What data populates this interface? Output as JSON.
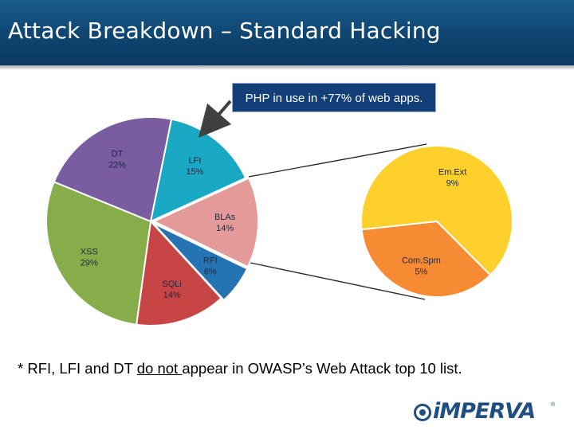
{
  "slide": {
    "title": "Attack Breakdown – Standard Hacking",
    "callout": "PHP in use in +77% of web apps.",
    "footnote_pre": "* RFI, LFI and DT ",
    "footnote_underlined": "do not ",
    "footnote_post": "appear in OWASP’s Web Attack top 10 list.",
    "logo_text": "iMPERVA",
    "logo_reg": "®"
  },
  "chart_data": [
    {
      "type": "pie",
      "slices": [
        {
          "label": "LFI",
          "value": 15,
          "pct": "15%",
          "color": "#1aa9c4"
        },
        {
          "label": "BLAs",
          "value": 14,
          "pct": "14%",
          "color": "#e49a98"
        },
        {
          "label": "RFI",
          "value": 6,
          "pct": "6%",
          "color": "#2673b3"
        },
        {
          "label": "SQLi",
          "value": 14,
          "pct": "14%",
          "color": "#c84545"
        },
        {
          "label": "XSS",
          "value": 29,
          "pct": "29%",
          "color": "#86ad4a"
        },
        {
          "label": "DT",
          "value": 22,
          "pct": "22%",
          "color": "#7a5ca0"
        }
      ]
    },
    {
      "type": "pie",
      "slices": [
        {
          "label": "Em.Ext",
          "value": 9,
          "pct": "9%",
          "color": "#fdd02c"
        },
        {
          "label": "Com.Spm",
          "value": 5,
          "pct": "5%",
          "color": "#f68b33"
        }
      ]
    }
  ]
}
